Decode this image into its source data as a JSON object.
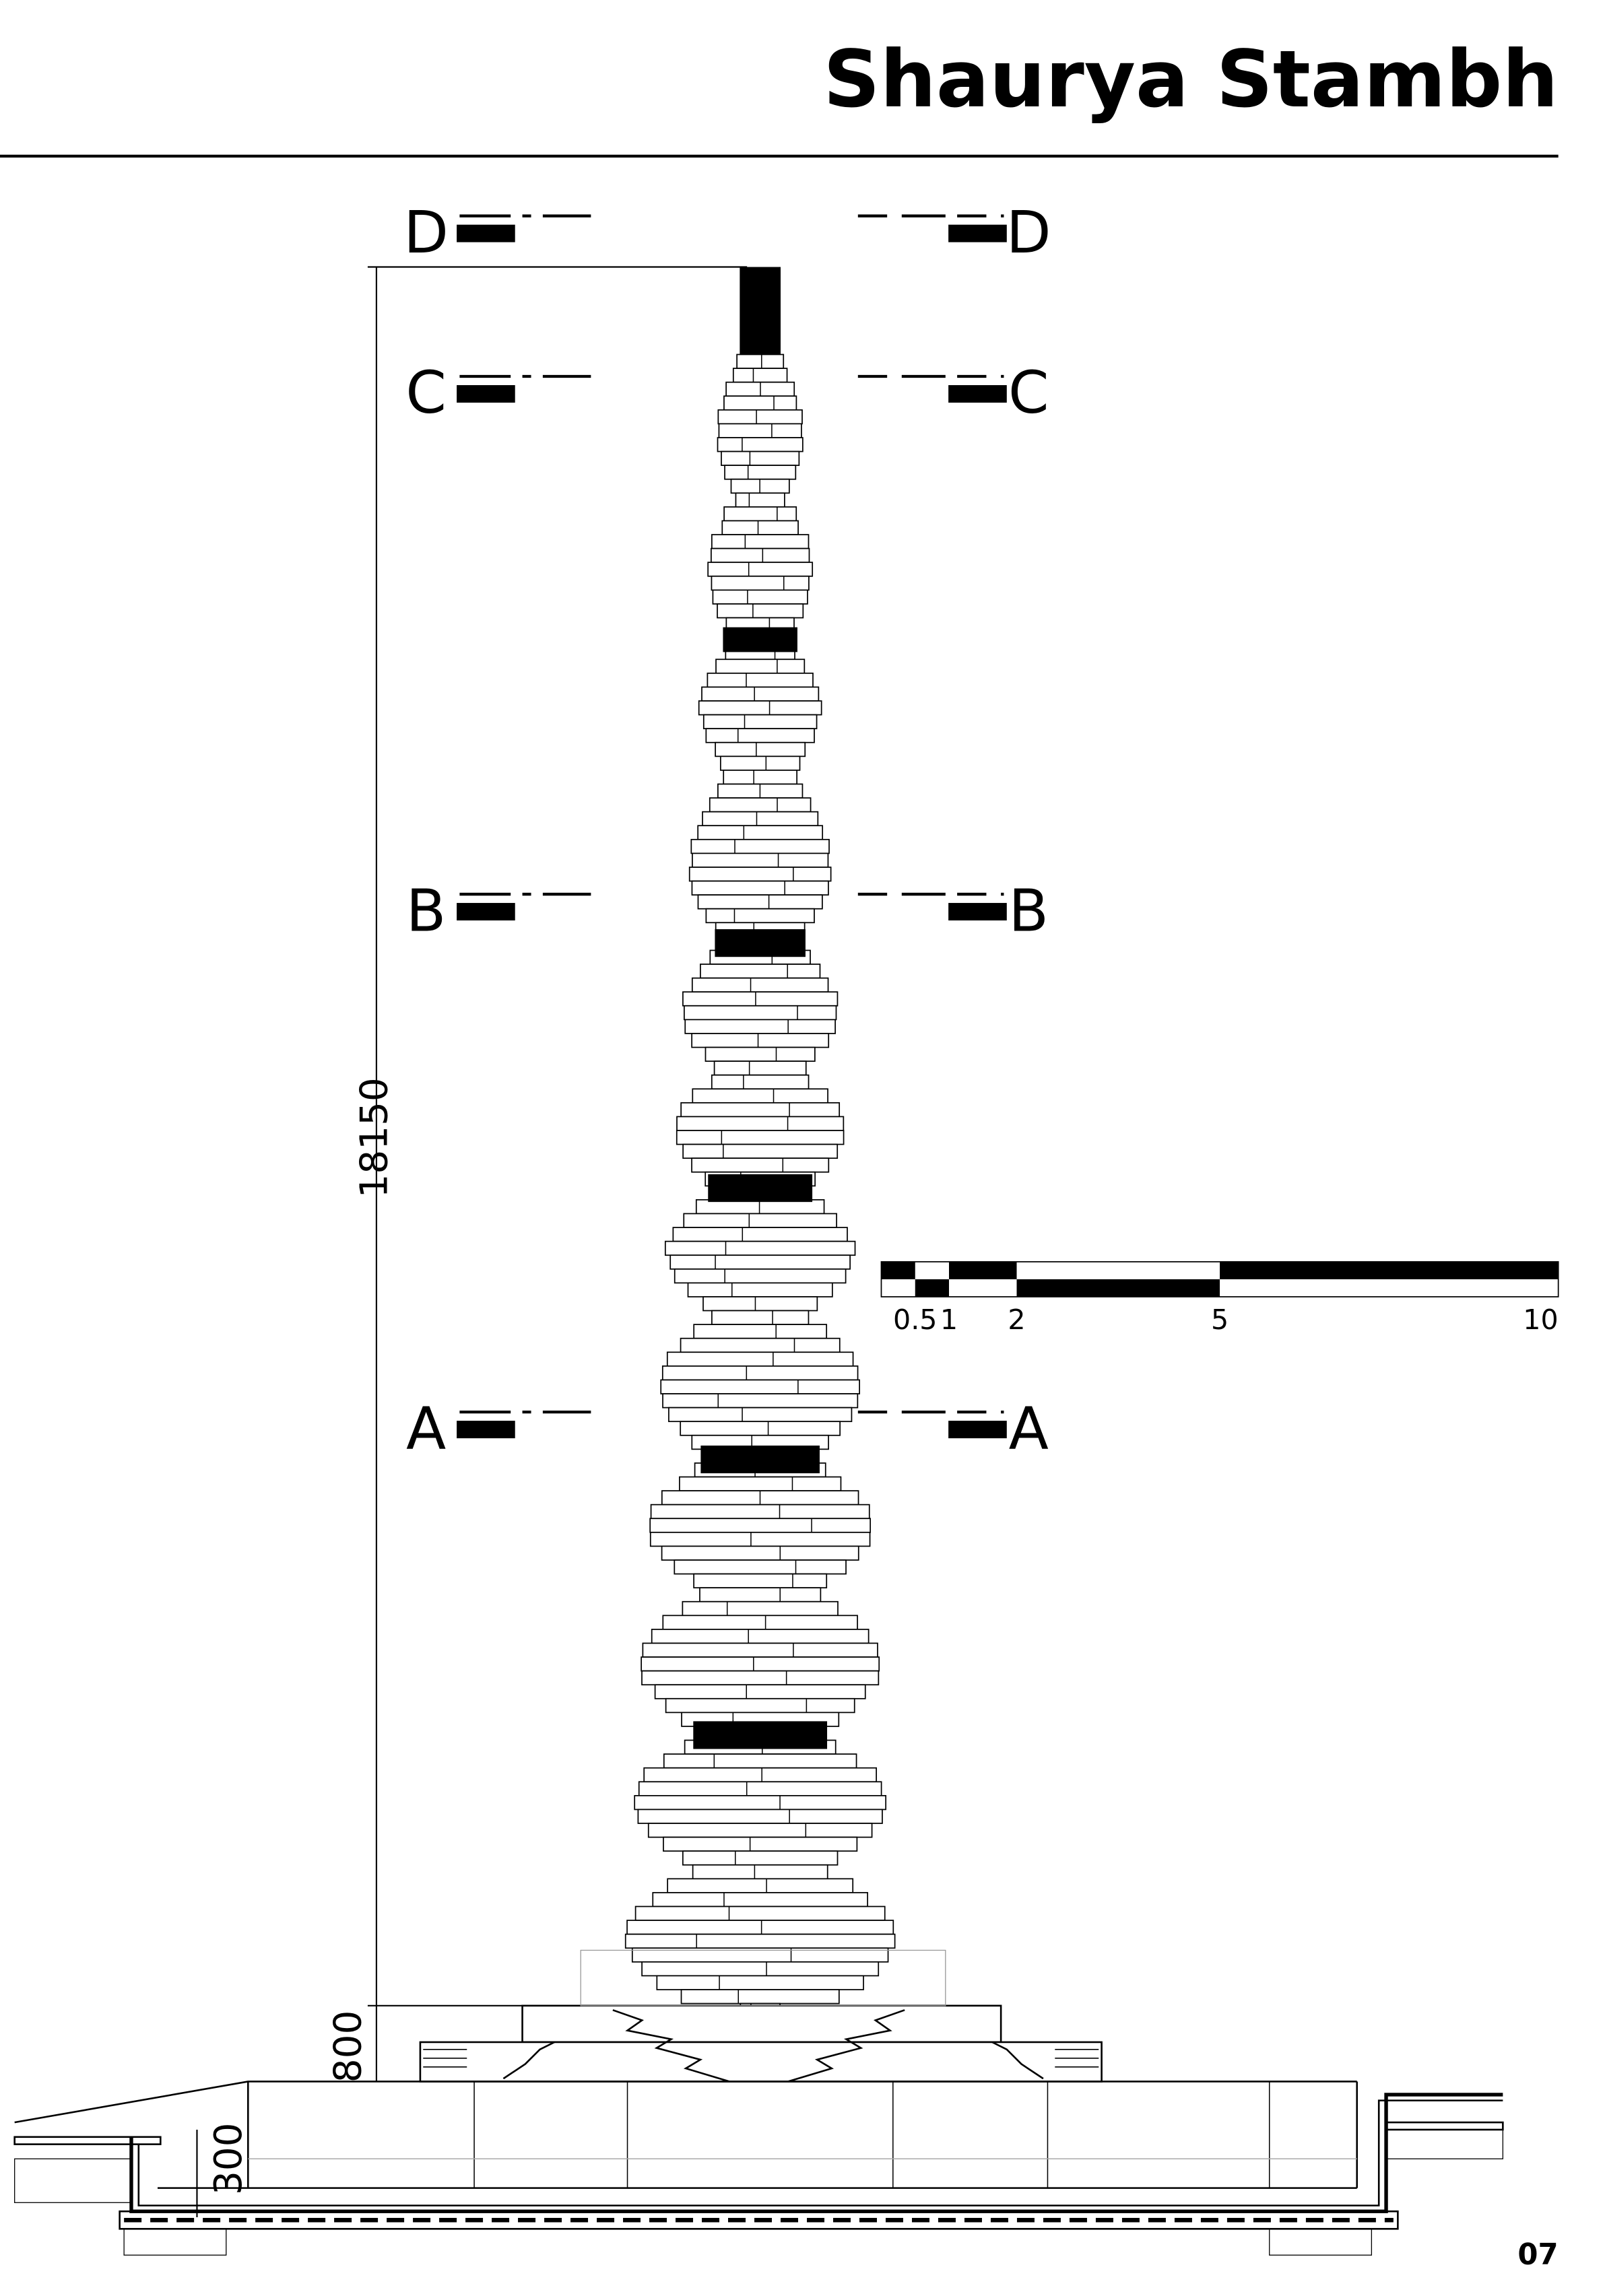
{
  "header": {
    "title": "Shaurya Stambh"
  },
  "sections": [
    {
      "label": "D"
    },
    {
      "label": "C"
    },
    {
      "label": "B"
    },
    {
      "label": "A"
    }
  ],
  "dimensions": {
    "height": "18150",
    "plinth": "800",
    "depth": "300"
  },
  "scale_bar": {
    "labels": [
      0.5,
      1,
      2,
      5,
      10
    ]
  },
  "page_number": "07"
}
